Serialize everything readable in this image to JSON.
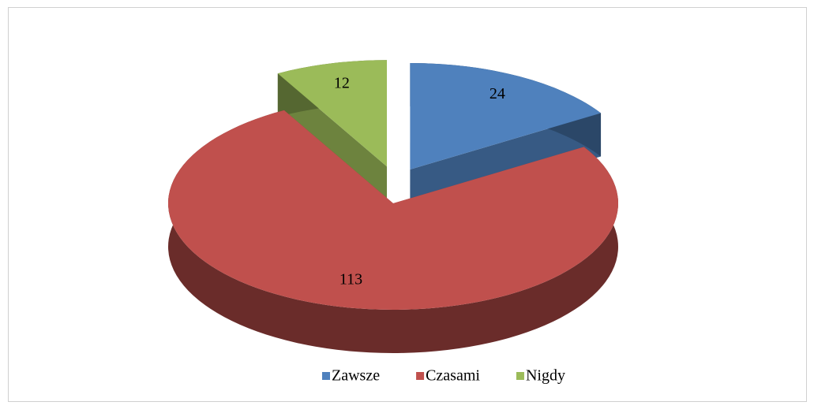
{
  "chart_data": {
    "type": "pie",
    "categories": [
      "Zawsze",
      "Czasami",
      "Nigdy"
    ],
    "values": [
      24,
      113,
      12
    ],
    "colors": [
      "#4f81bd",
      "#c0504d",
      "#9bbb59"
    ],
    "legend": "bottom"
  }
}
